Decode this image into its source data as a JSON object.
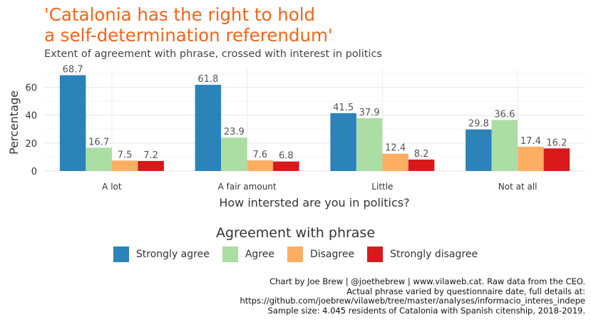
{
  "title_line1": "'Catalonia has the right to hold",
  "title_line2": "a self-determination referendum'",
  "subtitle": "Extent of agreement with phrase, crossed with interest in politics",
  "caption": [
    "Chart by Joe Brew | @joethebrew | www.vilaweb.cat. Raw data from the CEO.",
    "Actual phrase varied by questionnaire date, full details at:",
    "https://github.com/joebrew/vilaweb/tree/master/analyses/informacio_interes_indepe",
    "Sample size: 4.045 residents of Catalonia with Spanish citenship, 2018-2019."
  ],
  "chart_data": {
    "type": "bar",
    "xlabel": "How intersted are you in politics?",
    "ylabel": "Percentage",
    "ylim": [
      0,
      70
    ],
    "yticks": [
      0,
      20,
      40,
      60
    ],
    "categories": [
      "A lot",
      "A fair amount",
      "Little",
      "Not at all"
    ],
    "legend_title": "Agreement with phrase",
    "series": [
      {
        "name": "Strongly agree",
        "color": "#2b83ba",
        "values": [
          68.7,
          61.8,
          41.5,
          29.8
        ]
      },
      {
        "name": "Agree",
        "color": "#abdda4",
        "values": [
          16.7,
          23.9,
          37.9,
          36.6
        ]
      },
      {
        "name": "Disagree",
        "color": "#fdae61",
        "values": [
          7.5,
          7.6,
          12.4,
          17.4
        ]
      },
      {
        "name": "Strongly disagree",
        "color": "#d7191c",
        "values": [
          7.2,
          6.8,
          8.2,
          16.2
        ]
      }
    ]
  }
}
